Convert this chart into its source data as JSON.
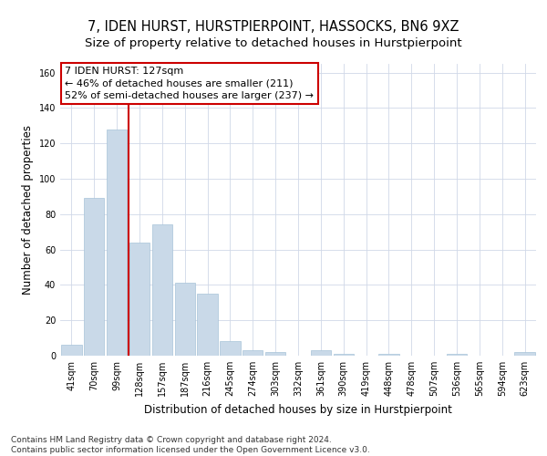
{
  "title": "7, IDEN HURST, HURSTPIERPOINT, HASSOCKS, BN6 9XZ",
  "subtitle": "Size of property relative to detached houses in Hurstpierpoint",
  "xlabel": "Distribution of detached houses by size in Hurstpierpoint",
  "ylabel": "Number of detached properties",
  "categories": [
    "41sqm",
    "70sqm",
    "99sqm",
    "128sqm",
    "157sqm",
    "187sqm",
    "216sqm",
    "245sqm",
    "274sqm",
    "303sqm",
    "332sqm",
    "361sqm",
    "390sqm",
    "419sqm",
    "448sqm",
    "478sqm",
    "507sqm",
    "536sqm",
    "565sqm",
    "594sqm",
    "623sqm"
  ],
  "values": [
    6,
    89,
    128,
    64,
    74,
    41,
    35,
    8,
    3,
    2,
    0,
    3,
    1,
    0,
    1,
    0,
    0,
    1,
    0,
    0,
    2
  ],
  "bar_color": "#c9d9e8",
  "bar_edgecolor": "#a8c4d8",
  "vline_x_index": 2.5,
  "vline_color": "#cc0000",
  "annotation_lines": [
    "7 IDEN HURST: 127sqm",
    "← 46% of detached houses are smaller (211)",
    "52% of semi-detached houses are larger (237) →"
  ],
  "annotation_box_color": "#ffffff",
  "annotation_box_edgecolor": "#cc0000",
  "ylim": [
    0,
    165
  ],
  "yticks": [
    0,
    20,
    40,
    60,
    80,
    100,
    120,
    140,
    160
  ],
  "footer_text": "Contains HM Land Registry data © Crown copyright and database right 2024.\nContains public sector information licensed under the Open Government Licence v3.0.",
  "title_fontsize": 10.5,
  "subtitle_fontsize": 9.5,
  "xlabel_fontsize": 8.5,
  "ylabel_fontsize": 8.5,
  "tick_fontsize": 7,
  "annotation_fontsize": 8,
  "footer_fontsize": 6.5
}
